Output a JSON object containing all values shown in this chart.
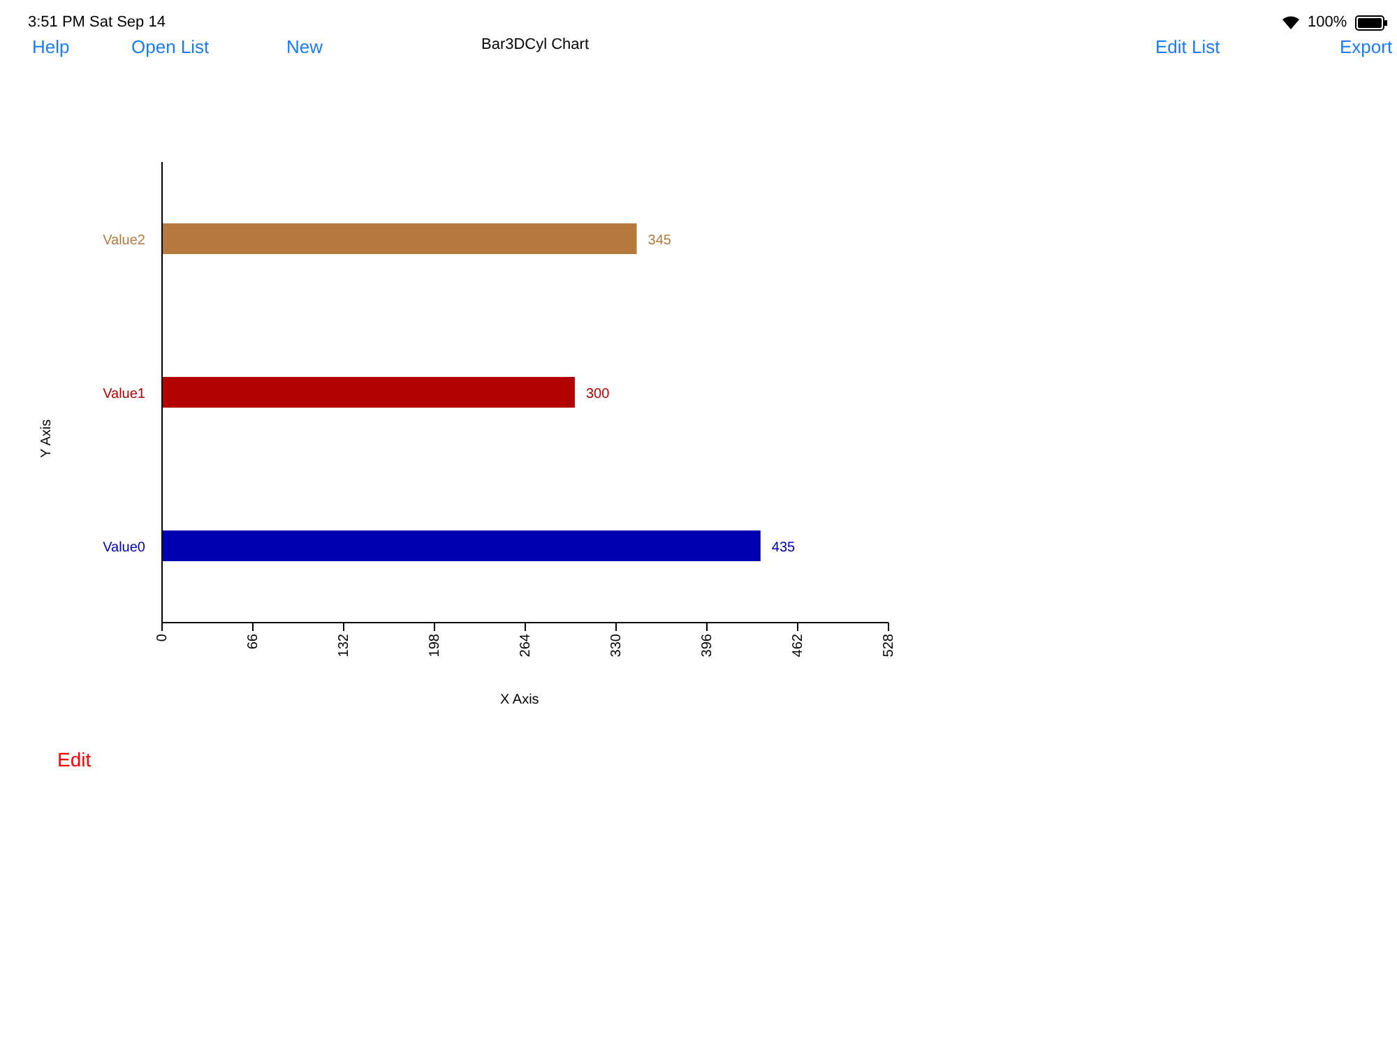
{
  "chart_data": {
    "type": "bar",
    "orientation": "horizontal",
    "title": "Bar3DCyl Chart",
    "xlabel": "X Axis",
    "ylabel": "Y Axis",
    "categories": [
      "Value2",
      "Value1",
      "Value0"
    ],
    "values": [
      345,
      300,
      435
    ],
    "colors": [
      "#b5793d",
      "#b30000",
      "#0000b3"
    ],
    "xlim": [
      0,
      528
    ],
    "xticks": [
      0,
      66,
      132,
      198,
      264,
      330,
      396,
      462,
      528
    ],
    "data_labels": true,
    "annotations": [
      "3:51 PM  Sat Sep 14",
      "100%",
      "Help",
      "Open List",
      "New",
      "Edit List",
      "Export",
      "Edit"
    ]
  }
}
